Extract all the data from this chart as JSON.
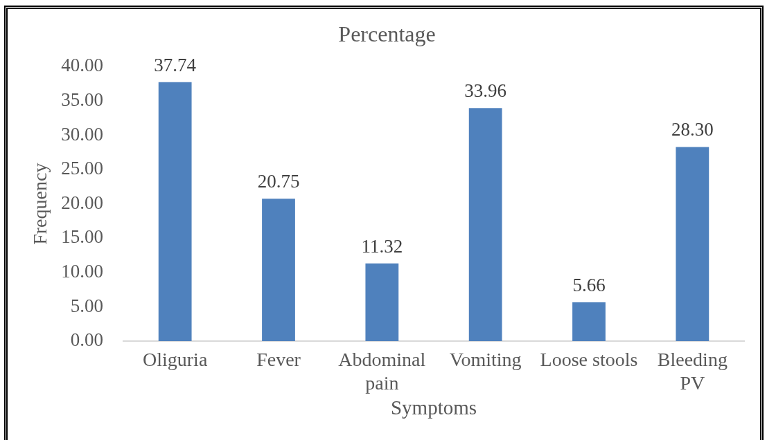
{
  "chart_data": {
    "type": "bar",
    "title": "Percentage",
    "xlabel": "Symptoms",
    "ylabel": "Frequency",
    "categories": [
      "Oliguria",
      "Fever",
      "Abdominal pain",
      "Vomiting",
      "Loose stools",
      "Bleeding PV"
    ],
    "values": [
      37.74,
      20.75,
      11.32,
      33.96,
      5.66,
      28.3
    ],
    "value_labels": [
      "37.74",
      "20.75",
      "11.32",
      "33.96",
      "5.66",
      "28.30"
    ],
    "color": "#4f81bd",
    "ylim": [
      0,
      40
    ],
    "yticks": [
      {
        "value": 0,
        "label": "0.00"
      },
      {
        "value": 5,
        "label": "5.00"
      },
      {
        "value": 10,
        "label": "10.00"
      },
      {
        "value": 15,
        "label": "15.00"
      },
      {
        "value": 20,
        "label": "20.00"
      },
      {
        "value": 25,
        "label": "25.00"
      },
      {
        "value": 30,
        "label": "30.00"
      },
      {
        "value": 35,
        "label": "35.00"
      },
      {
        "value": 40,
        "label": "40.00"
      }
    ]
  }
}
